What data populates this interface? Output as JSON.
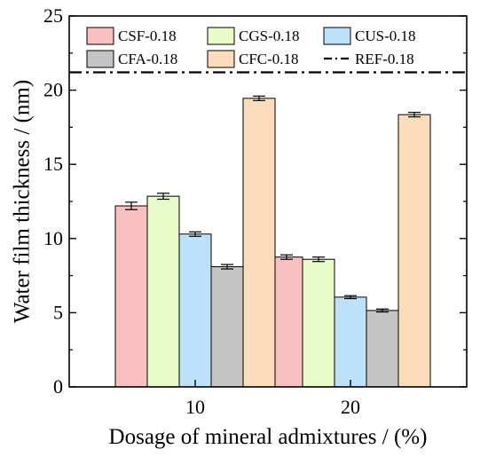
{
  "chart_data": {
    "type": "bar",
    "xlabel": "Dosage of mineral admixtures / (%)",
    "ylabel": "Water film thickness / (nm)",
    "ylim": [
      0,
      25
    ],
    "yticks": [
      "0",
      "5",
      "10",
      "15",
      "20",
      "25"
    ],
    "categories": [
      "10",
      "20"
    ],
    "grid": false,
    "legend": "top, inside, 3 columns",
    "series": [
      {
        "name": "CSF-0.18",
        "color": "#F8C0C0",
        "values": [
          12.2,
          8.75
        ],
        "errors": [
          0.25,
          0.15
        ]
      },
      {
        "name": "CGS-0.18",
        "color": "#E8FCC8",
        "values": [
          12.85,
          8.6
        ],
        "errors": [
          0.2,
          0.15
        ]
      },
      {
        "name": "CUS-0.18",
        "color": "#BDE1F9",
        "values": [
          10.3,
          6.05
        ],
        "errors": [
          0.15,
          0.1
        ]
      },
      {
        "name": "CFA-0.18",
        "color": "#C4C4C4",
        "values": [
          8.1,
          5.15
        ],
        "errors": [
          0.15,
          0.1
        ]
      },
      {
        "name": "CFC-0.18",
        "color": "#FBDDBB",
        "values": [
          19.45,
          18.35
        ],
        "errors": [
          0.15,
          0.15
        ]
      }
    ],
    "reference_line": {
      "name": "REF-0.18",
      "value": 21.2,
      "style": "dash-dot"
    }
  }
}
